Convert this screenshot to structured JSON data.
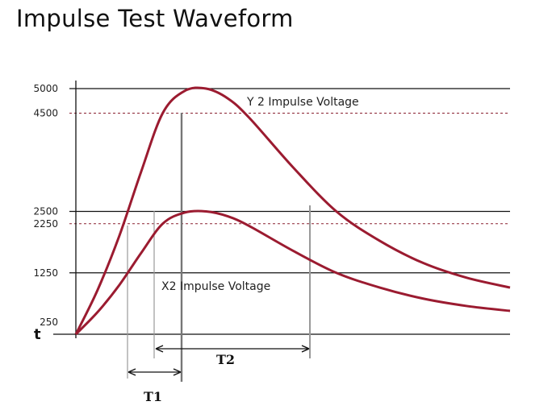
{
  "title": "Impulse Test Waveform",
  "chart_data": {
    "type": "line",
    "title": "Impulse Test Waveform",
    "xlabel": "t",
    "ylabel": "",
    "yticks": [
      {
        "value": 5000,
        "label": "5000",
        "line": "solid"
      },
      {
        "value": 4500,
        "label": "4500",
        "line": "dashed"
      },
      {
        "value": 2500,
        "label": "2500",
        "line": "solid"
      },
      {
        "value": 2250,
        "label": "2250",
        "line": "dashed"
      },
      {
        "value": 1250,
        "label": "1250",
        "line": "solid"
      },
      {
        "value": 250,
        "label": "250",
        "line": "none"
      }
    ],
    "ylim": [
      0,
      5000
    ],
    "series": [
      {
        "name": "Y 2 Impulse Voltage",
        "color": "#9b1b30",
        "x": [
          0,
          0.5,
          1.0,
          1.5,
          2.0,
          2.5,
          3.0,
          3.5,
          4.0,
          5.0,
          6.0,
          7.0,
          8.0,
          9.0,
          10.0
        ],
        "y": [
          0,
          900,
          2000,
          3300,
          4500,
          4950,
          5000,
          4800,
          4400,
          3400,
          2500,
          1900,
          1450,
          1150,
          950
        ]
      },
      {
        "name": "X2 Impulse Voltage",
        "color": "#9b1b30",
        "x": [
          0,
          0.5,
          1.0,
          1.5,
          2.0,
          2.5,
          3.0,
          3.5,
          4.0,
          5.0,
          6.0,
          7.0,
          8.0,
          9.0,
          10.0
        ],
        "y": [
          0,
          450,
          1000,
          1650,
          2250,
          2475,
          2500,
          2400,
          2200,
          1700,
          1250,
          950,
          725,
          575,
          475
        ]
      }
    ],
    "intervals": [
      {
        "label": "T1"
      },
      {
        "label": "T2"
      }
    ],
    "grid": false,
    "legend": "none"
  }
}
